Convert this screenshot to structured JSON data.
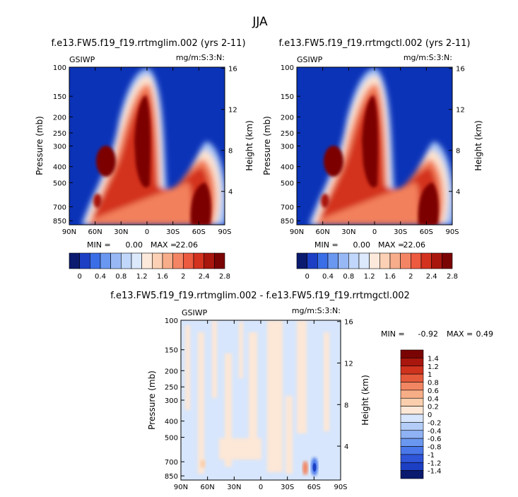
{
  "figure_title": "JJA",
  "colors": {
    "cb_top": [
      "#0a1a6e",
      "#1c3fc4",
      "#3a6ee6",
      "#6a98f0",
      "#98b8f5",
      "#c0d6fa",
      "#dce9fd",
      "#fde9dc",
      "#fbd0b4",
      "#f8ad8a",
      "#f48564",
      "#ec5a3f",
      "#d3321f",
      "#a8160e",
      "#7a0403"
    ],
    "cb_diff": [
      "#0a1a6e",
      "#1c3fc4",
      "#2f55d8",
      "#4a78ea",
      "#6a98f0",
      "#8fb2f4",
      "#b4cdf8",
      "#d7e6fc",
      "#fde7d6",
      "#fbcfae",
      "#f7ae86",
      "#f28662",
      "#e65a3c",
      "#cf331e",
      "#a8160e",
      "#7a0403"
    ]
  },
  "chart_data": [
    {
      "type": "heatmap",
      "title": "f.e13.FW5.f19_f19.rrtmglim.002 (yrs 2-11)",
      "left_string": "GSIWP",
      "right_string": "mg/m:S:3:N:",
      "xlabel": "",
      "ylabel": "Pressure (mb)",
      "ylabel_right": "Height (km)",
      "x_ticks": [
        "90N",
        "60N",
        "30N",
        "0",
        "30S",
        "60S",
        "90S"
      ],
      "y_ticks": [
        "100",
        "150",
        "200",
        "250",
        "300",
        "400",
        "500",
        "700",
        "850"
      ],
      "y_ticks_right": [
        "16",
        "12",
        "8",
        "4"
      ],
      "min_label": "MIN =",
      "min_value": "0.00",
      "max_label": "MAX =",
      "max_value": "22.06",
      "colorbar_labels": [
        "0",
        "0.4",
        "0.8",
        "1.2",
        "1.6",
        "2",
        "2.4",
        "2.8"
      ]
    },
    {
      "type": "heatmap",
      "title": "f.e13.FW5.f19_f19.rrtmgctl.002 (yrs 2-11)",
      "left_string": "GSIWP",
      "right_string": "mg/m:S:3:N:",
      "xlabel": "",
      "ylabel": "Pressure (mb)",
      "ylabel_right": "Height (km)",
      "x_ticks": [
        "90N",
        "60N",
        "30N",
        "0",
        "30S",
        "60S",
        "90S"
      ],
      "y_ticks": [
        "100",
        "150",
        "200",
        "250",
        "300",
        "400",
        "500",
        "700",
        "850"
      ],
      "y_ticks_right": [
        "16",
        "12",
        "8",
        "4"
      ],
      "min_label": "MIN =",
      "min_value": "0.00",
      "max_label": "MAX =",
      "max_value": "22.06",
      "colorbar_labels": [
        "0",
        "0.4",
        "0.8",
        "1.2",
        "1.6",
        "2",
        "2.4",
        "2.8"
      ]
    },
    {
      "type": "heatmap",
      "title": "f.e13.FW5.f19_f19.rrtmglim.002 - f.e13.FW5.f19_f19.rrtmgctl.002",
      "left_string": "GSIWP",
      "right_string": "mg/m:S:3:N:",
      "xlabel": "",
      "ylabel": "Pressure (mb)",
      "ylabel_right": "Height (km)",
      "x_ticks": [
        "90N",
        "60N",
        "30N",
        "0",
        "30S",
        "60S",
        "90S"
      ],
      "y_ticks": [
        "100",
        "150",
        "200",
        "250",
        "300",
        "400",
        "500",
        "700",
        "850"
      ],
      "y_ticks_right": [
        "16",
        "12",
        "8",
        "4"
      ],
      "min_label": "MIN =",
      "min_value": "-0.92",
      "max_label": "MAX =",
      "max_value": "0.49",
      "colorbar_labels": [
        "1.4",
        "1.2",
        "1",
        "0.8",
        "0.6",
        "0.4",
        "0.2",
        "0",
        "-0.2",
        "-0.4",
        "-0.6",
        "-0.8",
        "-1",
        "-1.2",
        "-1.4"
      ]
    }
  ]
}
